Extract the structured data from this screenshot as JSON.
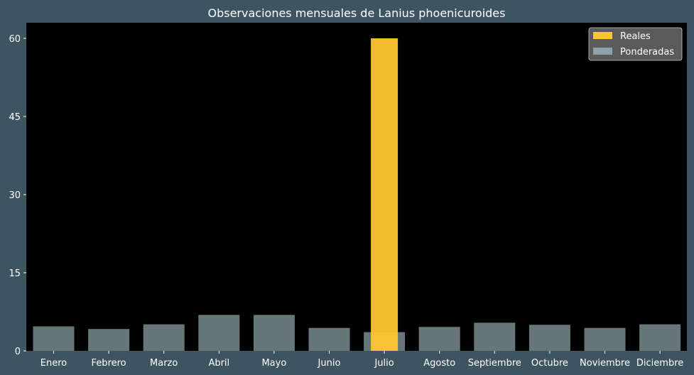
{
  "colors": {
    "background": "#3f5461",
    "plot_background": "#000000",
    "reales": "#ffc62f",
    "ponderadas": "#8fa3a8",
    "text": "#ffffff",
    "legend_bg": "#5a5a5a"
  },
  "chart_data": {
    "type": "bar",
    "title": "Observaciones mensuales de Lanius phoenicuroides",
    "xlabel": "",
    "ylabel": "",
    "ylim": [
      0,
      63
    ],
    "yticks": [
      0,
      15,
      30,
      45,
      60
    ],
    "categories": [
      "Enero",
      "Febrero",
      "Marzo",
      "Abril",
      "Mayo",
      "Junio",
      "Julio",
      "Agosto",
      "Septiembre",
      "Octubre",
      "Noviembre",
      "Diciembre"
    ],
    "series": [
      {
        "name": "Reales",
        "values": [
          0,
          0,
          0,
          0,
          0,
          0,
          60,
          0,
          0,
          0,
          0,
          0
        ]
      },
      {
        "name": "Ponderadas",
        "values": [
          4.7,
          4.2,
          5.1,
          6.9,
          6.9,
          4.4,
          3.6,
          4.6,
          5.4,
          5.0,
          4.4,
          5.1
        ]
      }
    ],
    "legend_position": "top-right",
    "grid": false
  }
}
